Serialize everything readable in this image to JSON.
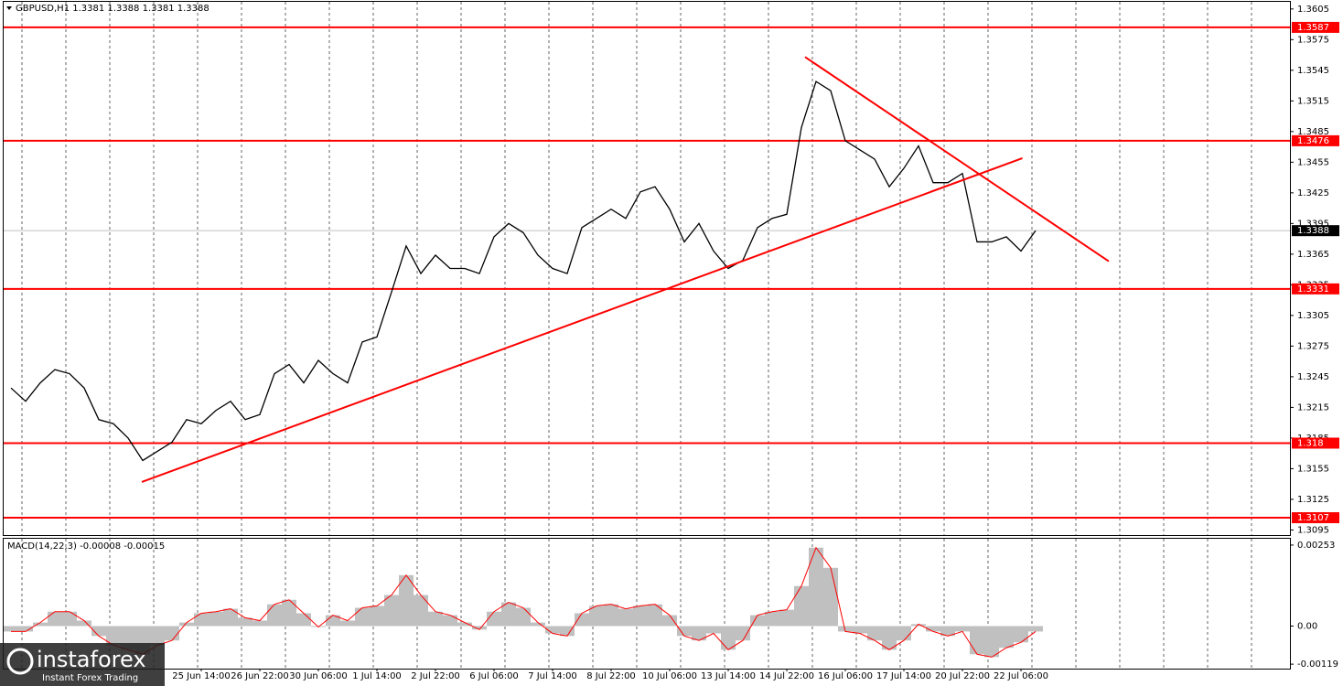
{
  "chart_data": [
    {
      "type": "ohlc_line",
      "title": "GBPUSD,H1  1.3381 1.3388 1.3381 1.3388",
      "categories": [
        null,
        null,
        null,
        null,
        null,
        null,
        null,
        null,
        null,
        null,
        null,
        null,
        null,
        "25 Jun 14:00",
        null,
        null,
        null,
        "26 Jun 22:00",
        null,
        null,
        null,
        "30 Jun 06:00",
        null,
        null,
        null,
        "1 Jul 14:00",
        null,
        null,
        null,
        "2 Jul 22:00",
        null,
        null,
        null,
        "6 Jul 06:00",
        null,
        null,
        null,
        "7 Jul 14:00",
        null,
        null,
        null,
        "8 Jul 22:00",
        null,
        null,
        null,
        "10 Jul 06:00",
        null,
        null,
        null,
        "13 Jul 14:00",
        null,
        null,
        null,
        "14 Jul 22:00",
        null,
        null,
        null,
        "16 Jul 06:00",
        null,
        null,
        null,
        "17 Jul 14:00",
        null,
        null,
        null,
        "20 Jul 22:00",
        null,
        null,
        null,
        "22 Jul 06:00",
        null
      ],
      "values": [
        1.3234,
        1.3221,
        1.3239,
        1.3252,
        1.3248,
        1.3234,
        1.3203,
        1.3199,
        1.3185,
        1.3163,
        1.3172,
        1.3181,
        1.3203,
        1.3199,
        1.3212,
        1.3221,
        1.3203,
        1.3208,
        1.3248,
        1.3257,
        1.3239,
        1.3261,
        1.3248,
        1.3239,
        1.3279,
        1.3284,
        1.3328,
        1.3373,
        1.3346,
        1.3364,
        1.3351,
        1.3351,
        1.3346,
        1.3382,
        1.3395,
        1.3386,
        1.3364,
        1.3351,
        1.3346,
        1.3391,
        1.34,
        1.3409,
        1.34,
        1.3426,
        1.3431,
        1.3409,
        1.3377,
        1.3395,
        1.3368,
        1.3351,
        1.3359,
        1.3391,
        1.34,
        1.3404,
        1.3489,
        1.3534,
        1.3525,
        1.3476,
        1.3467,
        1.3458,
        1.3431,
        1.3449,
        1.3471,
        1.3435,
        1.3435,
        1.3444,
        1.3377,
        1.3377,
        1.3382,
        1.3368,
        1.3388
      ],
      "color": "#000000",
      "ylim": [
        1.309,
        1.3612
      ],
      "yticks": [
        1.3095,
        1.3125,
        1.3155,
        1.3185,
        1.3215,
        1.3245,
        1.3275,
        1.3305,
        1.3335,
        1.3365,
        1.3395,
        1.3425,
        1.3455,
        1.3485,
        1.3515,
        1.3545,
        1.3575,
        1.3605
      ],
      "grid": true,
      "levels": [
        1.3587,
        1.3476,
        1.3331,
        1.318,
        1.3107
      ],
      "level_color": "#ff0000",
      "current_price": 1.3388,
      "trendlines": [
        {
          "x": [
            8.94,
            69.1
          ],
          "values": [
            1.3142,
            1.3459
          ]
        },
        {
          "x": [
            54.25,
            75
          ],
          "values": [
            1.3558,
            1.3358
          ]
        }
      ]
    },
    {
      "type": "macd",
      "title": "MACD(14,22,3) -0.00008 -0.00015",
      "values": [
        -0.00017,
        -0.00017,
        0.00011,
        0.00045,
        0.00045,
        0.00017,
        -0.00031,
        -0.0006,
        -0.00074,
        -0.00088,
        -0.0006,
        -0.00045,
        0.00011,
        0.0004,
        0.00045,
        0.00054,
        0.00026,
        0.00017,
        0.00068,
        0.00082,
        0.0004,
        -3e-05,
        0.00034,
        0.00017,
        0.00057,
        0.00063,
        0.00097,
        0.00159,
        0.00097,
        0.00045,
        0.00034,
        0.00011,
        -0.00011,
        0.00045,
        0.00074,
        0.00057,
        0.00011,
        -0.00023,
        -0.00031,
        0.0004,
        0.00063,
        0.00068,
        0.00054,
        0.00063,
        0.00068,
        0.00034,
        -0.00031,
        -0.00045,
        -0.00023,
        -0.00074,
        -0.00045,
        0.00034,
        0.00045,
        0.00051,
        0.00125,
        0.00245,
        0.00182,
        -0.00017,
        -0.00023,
        -0.00045,
        -0.00074,
        -0.00045,
        6e-05,
        -0.00017,
        -0.00031,
        -0.00017,
        -0.00088,
        -0.00097,
        -0.00068,
        -0.00051,
        -0.00017
      ],
      "color": "#c0c0c0",
      "signal_color": "#ff0000",
      "ylim": [
        -0.00133,
        0.0027
      ],
      "yticks": [
        -0.00119,
        {
          "value": 0,
          "label": "0.00"
        },
        0.00253
      ]
    }
  ],
  "watermark": {
    "brand": "instaforex",
    "tagline": "Instant Forex Trading"
  }
}
